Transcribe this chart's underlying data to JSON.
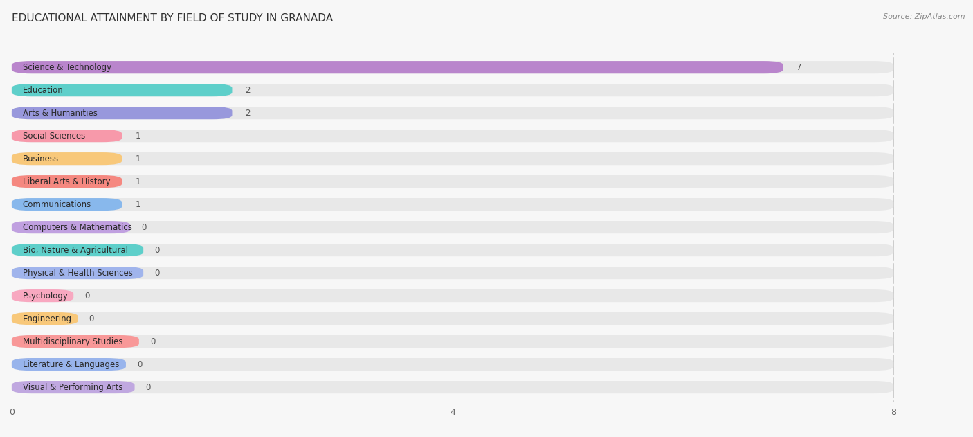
{
  "title": "EDUCATIONAL ATTAINMENT BY FIELD OF STUDY IN GRANADA",
  "source": "Source: ZipAtlas.com",
  "categories": [
    "Science & Technology",
    "Education",
    "Arts & Humanities",
    "Social Sciences",
    "Business",
    "Liberal Arts & History",
    "Communications",
    "Computers & Mathematics",
    "Bio, Nature & Agricultural",
    "Physical & Health Sciences",
    "Psychology",
    "Engineering",
    "Multidisciplinary Studies",
    "Literature & Languages",
    "Visual & Performing Arts"
  ],
  "values": [
    7,
    2,
    2,
    1,
    1,
    1,
    1,
    0,
    0,
    0,
    0,
    0,
    0,
    0,
    0
  ],
  "colors": [
    "#b985cc",
    "#5ecfca",
    "#9898dc",
    "#f799aa",
    "#f8c87a",
    "#f58880",
    "#88b8ec",
    "#c0a0e0",
    "#5ecfca",
    "#a0b4ec",
    "#f8a8c0",
    "#f8c87a",
    "#f89898",
    "#98b4ec",
    "#c0a8e0"
  ],
  "xlim": [
    0,
    8.5
  ],
  "xlim_display": [
    0,
    8
  ],
  "xticks": [
    0,
    4,
    8
  ],
  "background_color": "#f7f7f7",
  "bar_bg_color": "#e8e8e8",
  "row_bg_alt": "#f0f0f0",
  "title_fontsize": 11,
  "label_fontsize": 8.5,
  "value_fontsize": 8.5,
  "source_fontsize": 8
}
